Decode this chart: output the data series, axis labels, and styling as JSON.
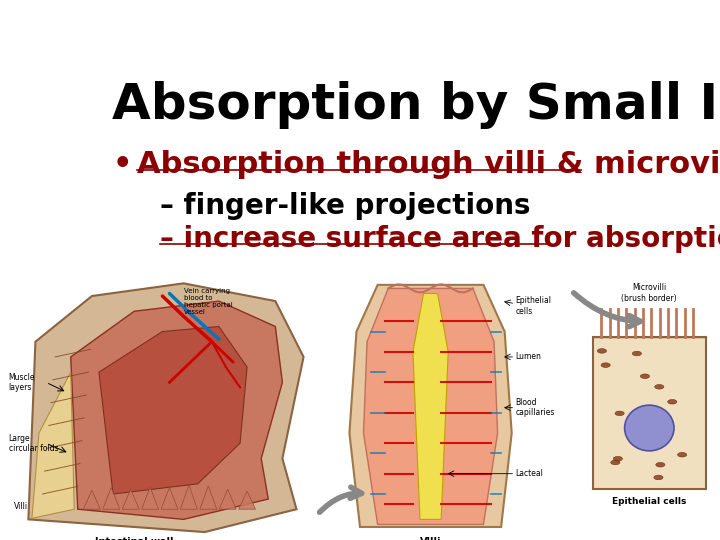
{
  "title": "Absorption by Small Intestine",
  "title_fontsize": 36,
  "title_color": "#000000",
  "title_bold": true,
  "bullet_text": "Absorption through villi & microvilli",
  "bullet_color": "#8B0000",
  "bullet_fontsize": 22,
  "sub1_text": "– finger-like projections",
  "sub1_color": "#000000",
  "sub1_fontsize": 20,
  "sub2_text": "– increase surface area for absorption",
  "sub2_color": "#8B0000",
  "sub2_fontsize": 20,
  "bg_color": "#ffffff"
}
